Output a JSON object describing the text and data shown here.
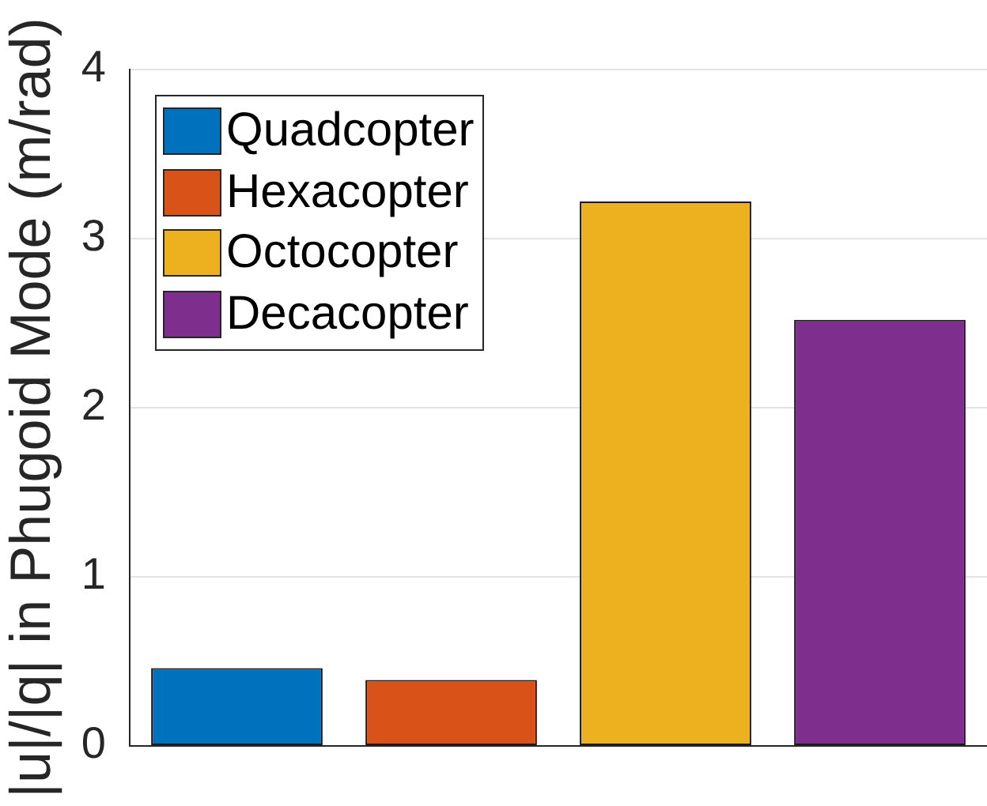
{
  "chart_data": {
    "type": "bar",
    "ylabel": "|u|/|q| in Phugoid Mode (m/rad)",
    "categories": [
      null,
      null,
      null,
      null
    ],
    "series": [
      {
        "name": "Quadcopter",
        "color": "#0072bd",
        "values": [
          0.46,
          null,
          null,
          null
        ]
      },
      {
        "name": "Hexacopter",
        "color": "#d95319",
        "values": [
          null,
          0.39,
          null,
          null
        ]
      },
      {
        "name": "Octocopter",
        "color": "#edb120",
        "values": [
          null,
          null,
          3.22,
          null
        ]
      },
      {
        "name": "Decacopter",
        "color": "#7e2f8e",
        "values": [
          null,
          null,
          null,
          2.52
        ]
      }
    ],
    "ylim": [
      0,
      4
    ],
    "yticks": [
      0,
      1,
      2,
      3,
      4
    ],
    "grid": "y",
    "legend": "top left",
    "tick_labels": "y"
  }
}
